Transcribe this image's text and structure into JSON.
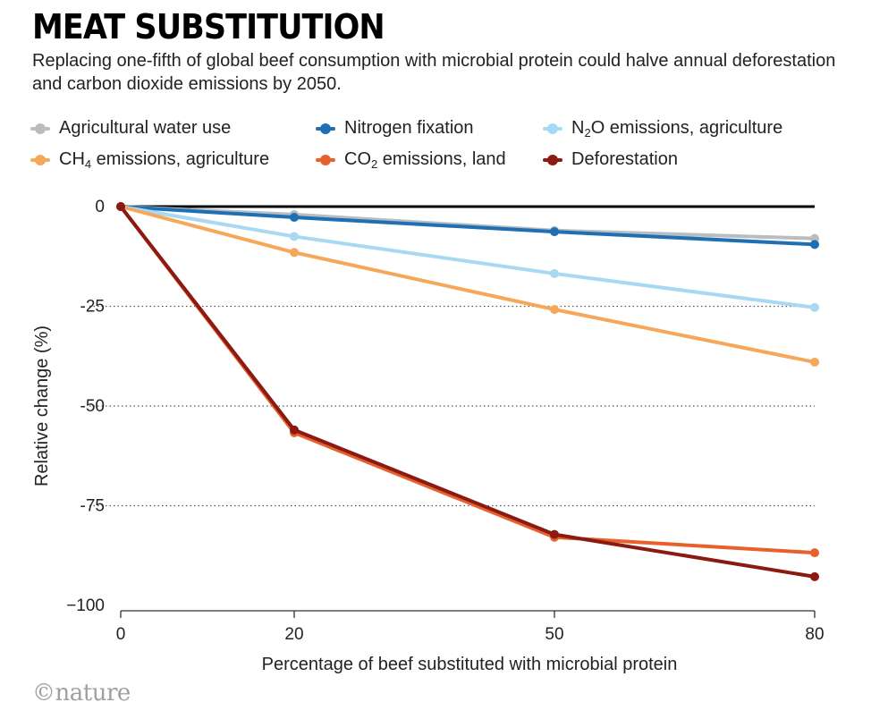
{
  "header": {
    "title": "MEAT SUBSTITUTION",
    "subtitle": "Replacing one-fifth of global beef consumption with microbial protein could halve annual deforestation and carbon dioxide emissions by 2050."
  },
  "legend": [
    {
      "id": "water",
      "label_parts": [
        "Agricultural water use"
      ],
      "color": "#b9bdc1"
    },
    {
      "id": "nitrogen",
      "label_parts": [
        "Nitrogen fixation"
      ],
      "color": "#1f6fb5"
    },
    {
      "id": "n2o",
      "label_parts": [
        "N",
        "2",
        "O emissions, agriculture"
      ],
      "color": "#a8d8f2"
    },
    {
      "id": "ch4",
      "label_parts": [
        "CH",
        "4",
        " emissions, agriculture"
      ],
      "color": "#f5a85a"
    },
    {
      "id": "co2",
      "label_parts": [
        "CO",
        "2",
        " emissions, land"
      ],
      "color": "#e8602c"
    },
    {
      "id": "deforestation",
      "label_parts": [
        "Deforestation"
      ],
      "color": "#8b1a12"
    }
  ],
  "chart_data": {
    "type": "line",
    "x": [
      0,
      20,
      50,
      80
    ],
    "x_tick_labels": [
      "0",
      "20",
      "50",
      "80"
    ],
    "y_tick_values": [
      0,
      -25,
      -50,
      -75,
      -100
    ],
    "y_tick_labels": [
      "0",
      "-25",
      "-50",
      "-75",
      "−100"
    ],
    "ylim": [
      -100,
      0
    ],
    "xlabel": "Percentage of beef substituted with microbial protein",
    "ylabel": "Relative change (%)",
    "grid": "dotted horizontal",
    "series": [
      {
        "id": "water",
        "name": "Agricultural water use",
        "color": "#b9bdc1",
        "values": [
          0,
          -2,
          -6,
          -8
        ]
      },
      {
        "id": "nitrogen",
        "name": "Nitrogen fixation",
        "color": "#1f6fb5",
        "values": [
          0,
          -2.7,
          -6.3,
          -9.5
        ]
      },
      {
        "id": "n2o",
        "name": "N2O emissions, agriculture",
        "color": "#a8d8f2",
        "values": [
          0,
          -7.5,
          -16.8,
          -25.3
        ]
      },
      {
        "id": "ch4",
        "name": "CH4 emissions, agriculture",
        "color": "#f5a85a",
        "values": [
          0,
          -11.5,
          -25.8,
          -39
        ]
      },
      {
        "id": "co2",
        "name": "CO2 emissions, land",
        "color": "#e8602c",
        "values": [
          0,
          -56.7,
          -82.9,
          -86.8
        ]
      },
      {
        "id": "deforestation",
        "name": "Deforestation",
        "color": "#8b1a12",
        "values": [
          0,
          -56,
          -82.2,
          -92.8
        ]
      }
    ]
  },
  "footer": {
    "credit": "©nature"
  }
}
